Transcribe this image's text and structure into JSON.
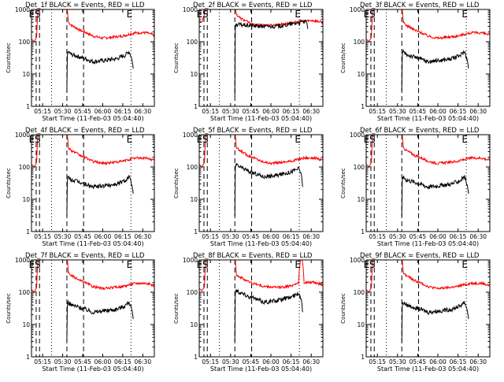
{
  "colors": {
    "events": "#000000",
    "lld": "#ff0000",
    "background": "#ffffff"
  },
  "chart_data": [
    {
      "type": "line",
      "title": "Det_1f BLACK = Events, RED = LLD",
      "xlabel": "Start Time (11-Feb-03 05:04:40)",
      "ylabel": "Counts/sec",
      "yscale": "log",
      "ylim": [
        1,
        1000
      ],
      "yticks": [
        "1",
        "10",
        "100",
        "1000"
      ],
      "xticks": [
        "05:15",
        "05:30",
        "05:45",
        "06:00",
        "06:15",
        "06:30"
      ],
      "markers": [
        "E",
        "S",
        "E"
      ],
      "lld_profile": "red_a",
      "events_profile": "blk_a",
      "series": [
        {
          "name": "Events",
          "color": "black"
        },
        {
          "name": "LLD",
          "color": "red"
        }
      ]
    },
    {
      "type": "line",
      "title": "Det_2f BLACK = Events, RED = LLD",
      "xlabel": "Start Time (11-Feb-03 05:04:40)",
      "ylabel": "Counts/sec",
      "yscale": "log",
      "ylim": [
        1,
        1000
      ],
      "yticks": [
        "1",
        "10",
        "100",
        "1000"
      ],
      "xticks": [
        "05:15",
        "05:30",
        "05:45",
        "06:00",
        "06:15",
        "06:30"
      ],
      "markers": [
        "E",
        "S",
        "E"
      ],
      "lld_profile": "red_b",
      "events_profile": "blk_b",
      "series": [
        {
          "name": "Events",
          "color": "black"
        },
        {
          "name": "LLD",
          "color": "red"
        }
      ]
    },
    {
      "type": "line",
      "title": "Det_3f BLACK = Events, RED = LLD",
      "xlabel": "Start Time (11-Feb-03 05:04:40)",
      "ylabel": "Counts/sec",
      "yscale": "log",
      "ylim": [
        1,
        1000
      ],
      "yticks": [
        "1",
        "10",
        "100",
        "1000"
      ],
      "xticks": [
        "05:15",
        "05:30",
        "05:45",
        "06:00",
        "06:15",
        "06:30"
      ],
      "markers": [
        "E",
        "S",
        "E"
      ],
      "lld_profile": "red_a",
      "events_profile": "blk_a",
      "series": [
        {
          "name": "Events",
          "color": "black"
        },
        {
          "name": "LLD",
          "color": "red"
        }
      ]
    },
    {
      "type": "line",
      "title": "Det_4f BLACK = Events, RED = LLD",
      "xlabel": "Start Time (11-Feb-03 05:04:40)",
      "ylabel": "Counts/sec",
      "yscale": "log",
      "ylim": [
        1,
        1000
      ],
      "yticks": [
        "1",
        "10",
        "100",
        "1000"
      ],
      "xticks": [
        "05:15",
        "05:30",
        "05:45",
        "06:00",
        "06:15",
        "06:30"
      ],
      "markers": [
        "E",
        "S",
        "E"
      ],
      "lld_profile": "red_a",
      "events_profile": "blk_a",
      "series": [
        {
          "name": "Events",
          "color": "black"
        },
        {
          "name": "LLD",
          "color": "red"
        }
      ]
    },
    {
      "type": "line",
      "title": "Det_5f BLACK = Events, RED = LLD",
      "xlabel": "Start Time (11-Feb-03 05:04:40)",
      "ylabel": "Counts/sec",
      "yscale": "log",
      "ylim": [
        1,
        1000
      ],
      "yticks": [
        "1",
        "10",
        "100",
        "1000"
      ],
      "xticks": [
        "05:15",
        "05:30",
        "05:45",
        "06:00",
        "06:15",
        "06:30"
      ],
      "markers": [
        "E",
        "S",
        "E"
      ],
      "lld_profile": "red_a",
      "events_profile": "blk_c",
      "series": [
        {
          "name": "Events",
          "color": "black"
        },
        {
          "name": "LLD",
          "color": "red"
        }
      ]
    },
    {
      "type": "line",
      "title": "Det_6f BLACK = Events, RED = LLD",
      "xlabel": "Start Time (11-Feb-03 05:04:40)",
      "ylabel": "Counts/sec",
      "yscale": "log",
      "ylim": [
        1,
        1000
      ],
      "yticks": [
        "1",
        "10",
        "100",
        "1000"
      ],
      "xticks": [
        "05:15",
        "05:30",
        "05:45",
        "06:00",
        "06:15",
        "06:30"
      ],
      "markers": [
        "E",
        "S",
        "E"
      ],
      "lld_profile": "red_a",
      "events_profile": "blk_a",
      "series": [
        {
          "name": "Events",
          "color": "black"
        },
        {
          "name": "LLD",
          "color": "red"
        }
      ]
    },
    {
      "type": "line",
      "title": "Det_7f BLACK = Events, RED = LLD",
      "xlabel": "Start Time (11-Feb-03 05:04:40)",
      "ylabel": "Counts/sec",
      "yscale": "log",
      "ylim": [
        1,
        1000
      ],
      "yticks": [
        "1",
        "10",
        "100",
        "1000"
      ],
      "xticks": [
        "05:15",
        "05:30",
        "05:45",
        "06:00",
        "06:15",
        "06:30"
      ],
      "markers": [
        "E",
        "S",
        "E"
      ],
      "lld_profile": "red_a",
      "events_profile": "blk_a",
      "series": [
        {
          "name": "Events",
          "color": "black"
        },
        {
          "name": "LLD",
          "color": "red"
        }
      ]
    },
    {
      "type": "line",
      "title": "Det_8f BLACK = Events, RED = LLD",
      "xlabel": "Start Time (11-Feb-03 05:04:40)",
      "ylabel": "Counts/sec",
      "yscale": "log",
      "ylim": [
        1,
        1000
      ],
      "yticks": [
        "1",
        "10",
        "100",
        "1000"
      ],
      "xticks": [
        "05:15",
        "05:30",
        "05:45",
        "06:00",
        "06:15",
        "06:30"
      ],
      "markers": [
        "E",
        "S",
        "E"
      ],
      "lld_profile": "red_c",
      "events_profile": "blk_c",
      "series": [
        {
          "name": "Events",
          "color": "black"
        },
        {
          "name": "LLD",
          "color": "red"
        }
      ]
    },
    {
      "type": "line",
      "title": "Det_9f BLACK = Events, RED = LLD",
      "xlabel": "Start Time (11-Feb-03 05:04:40)",
      "ylabel": "Counts/sec",
      "yscale": "log",
      "ylim": [
        1,
        1000
      ],
      "yticks": [
        "1",
        "10",
        "100",
        "1000"
      ],
      "xticks": [
        "05:15",
        "05:30",
        "05:45",
        "06:00",
        "06:15",
        "06:30"
      ],
      "markers": [
        "E",
        "S",
        "E"
      ],
      "lld_profile": "red_a",
      "events_profile": "blk_a",
      "series": [
        {
          "name": "Events",
          "color": "black"
        },
        {
          "name": "LLD",
          "color": "red"
        }
      ]
    }
  ]
}
